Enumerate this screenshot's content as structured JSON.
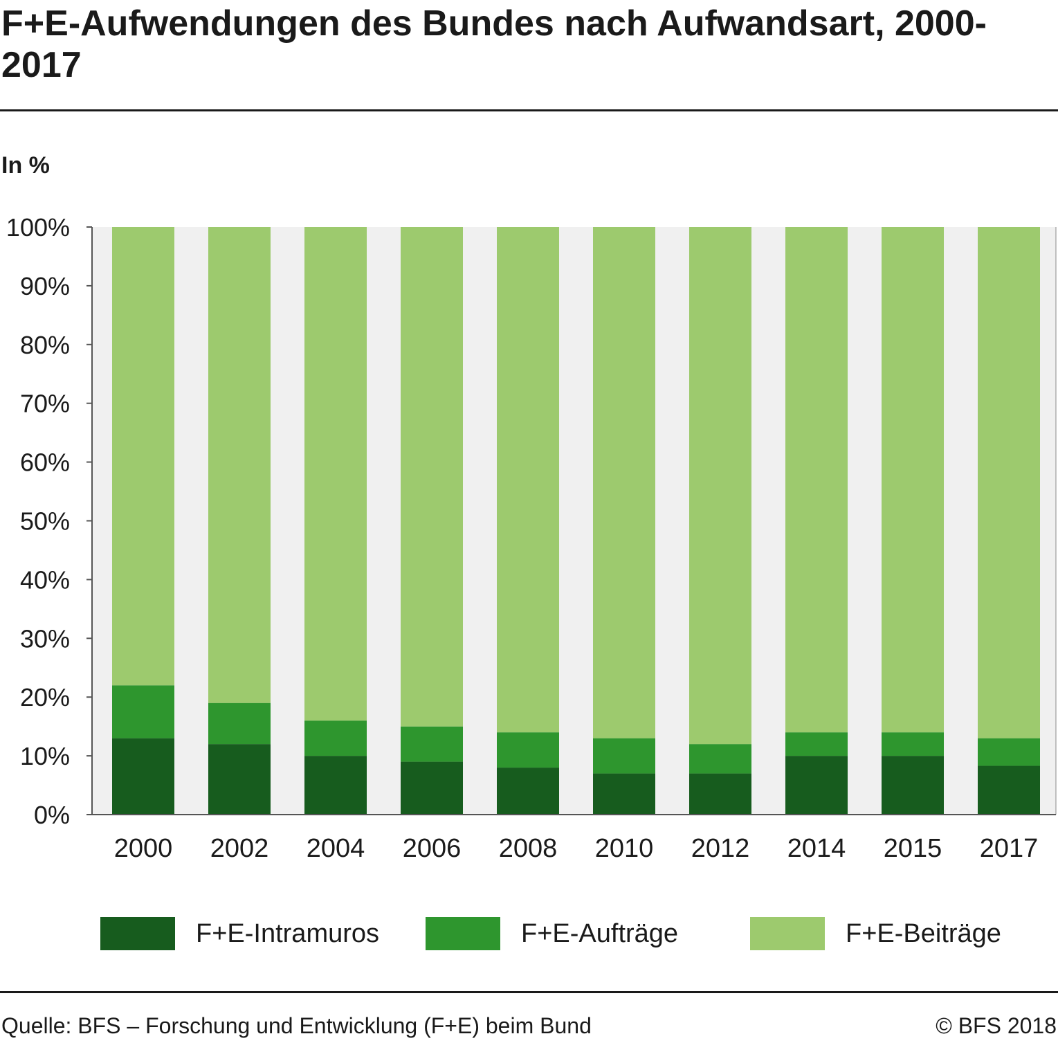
{
  "title": "F+E-Aufwendungen des Bundes nach Aufwandsart, 2000-2017",
  "unit_label": "In %",
  "source": "Quelle: BFS – Forschung und Entwicklung (F+E) beim Bund",
  "copyright": "© BFS 2018",
  "colors": {
    "intramuros": "#175c1e",
    "auftraege": "#2e962e",
    "beitraege": "#9dca6e",
    "plot_bg": "#f0f0f0",
    "axis": "#555555"
  },
  "chart_data": {
    "type": "bar",
    "stacked": true,
    "categories": [
      "2000",
      "2002",
      "2004",
      "2006",
      "2008",
      "2010",
      "2012",
      "2014",
      "2015",
      "2017"
    ],
    "ylim": [
      0,
      100
    ],
    "yticks": [
      "0%",
      "10%",
      "20%",
      "30%",
      "40%",
      "50%",
      "60%",
      "70%",
      "80%",
      "90%",
      "100%"
    ],
    "ylabel": "In %",
    "series": [
      {
        "name": "F+E-Intramuros",
        "values": [
          13,
          12,
          10,
          9,
          8,
          7,
          7,
          10,
          10,
          8.3
        ]
      },
      {
        "name": "F+E-Aufträge",
        "values": [
          9,
          7,
          6,
          6,
          6,
          6,
          5,
          4,
          4,
          4.7
        ]
      },
      {
        "name": "F+E-Beiträge",
        "values": [
          78,
          81,
          84,
          85,
          86,
          87,
          88,
          86,
          86,
          87
        ]
      }
    ],
    "legend_position": "bottom",
    "grid": false
  }
}
